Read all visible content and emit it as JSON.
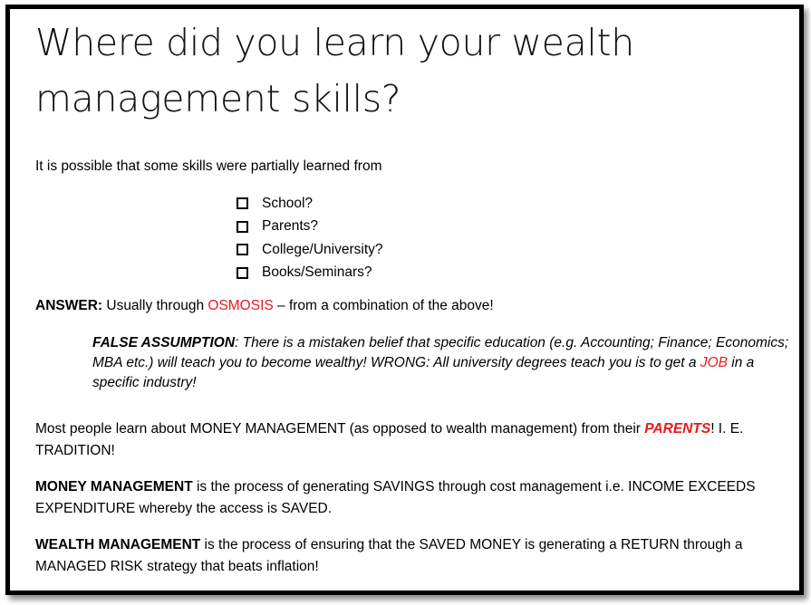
{
  "title": "Where did you learn your wealth management skills?",
  "intro": "It is possible that some skills were partially learned from",
  "checklist": [
    {
      "label": "School?",
      "checked": false
    },
    {
      "label": "Parents?",
      "checked": false
    },
    {
      "label": "College/University?",
      "checked": false
    },
    {
      "label": "Books/Seminars?",
      "checked": false
    }
  ],
  "answer": {
    "label": "ANSWER:",
    "pre": " Usually through ",
    "highlight": "OSMOSIS",
    "post": " – from a combination of the above!"
  },
  "false_assumption": {
    "label": "FALSE ASSUMPTION",
    "text": ": There is a mistaken belief that specific education (e.g. Accounting; Finance; Economics; MBA etc.) will teach you to become wealthy! WRONG: All university degrees teach you is to get a ",
    "highlight": "JOB",
    "post": " in a specific industry!"
  },
  "money_source": {
    "text": "Most people learn about MONEY MANAGEMENT (as opposed to wealth management) from their ",
    "highlight": "PARENTS",
    "post": "! I. E. TRADITION!"
  },
  "money_management": {
    "label": "MONEY MANAGEMENT",
    "text": " is the process of generating SAVINGS through cost management i.e. INCOME EXCEEDS EXPENDITURE whereby the access is SAVED."
  },
  "wealth_management": {
    "label": "WEALTH MANAGEMENT",
    "text": " is the process of ensuring that the SAVED MONEY is generating a RETURN through a MANAGED RISK strategy that beats inflation!"
  },
  "colors": {
    "accent_red": "#e81a1a",
    "border": "#000000"
  }
}
